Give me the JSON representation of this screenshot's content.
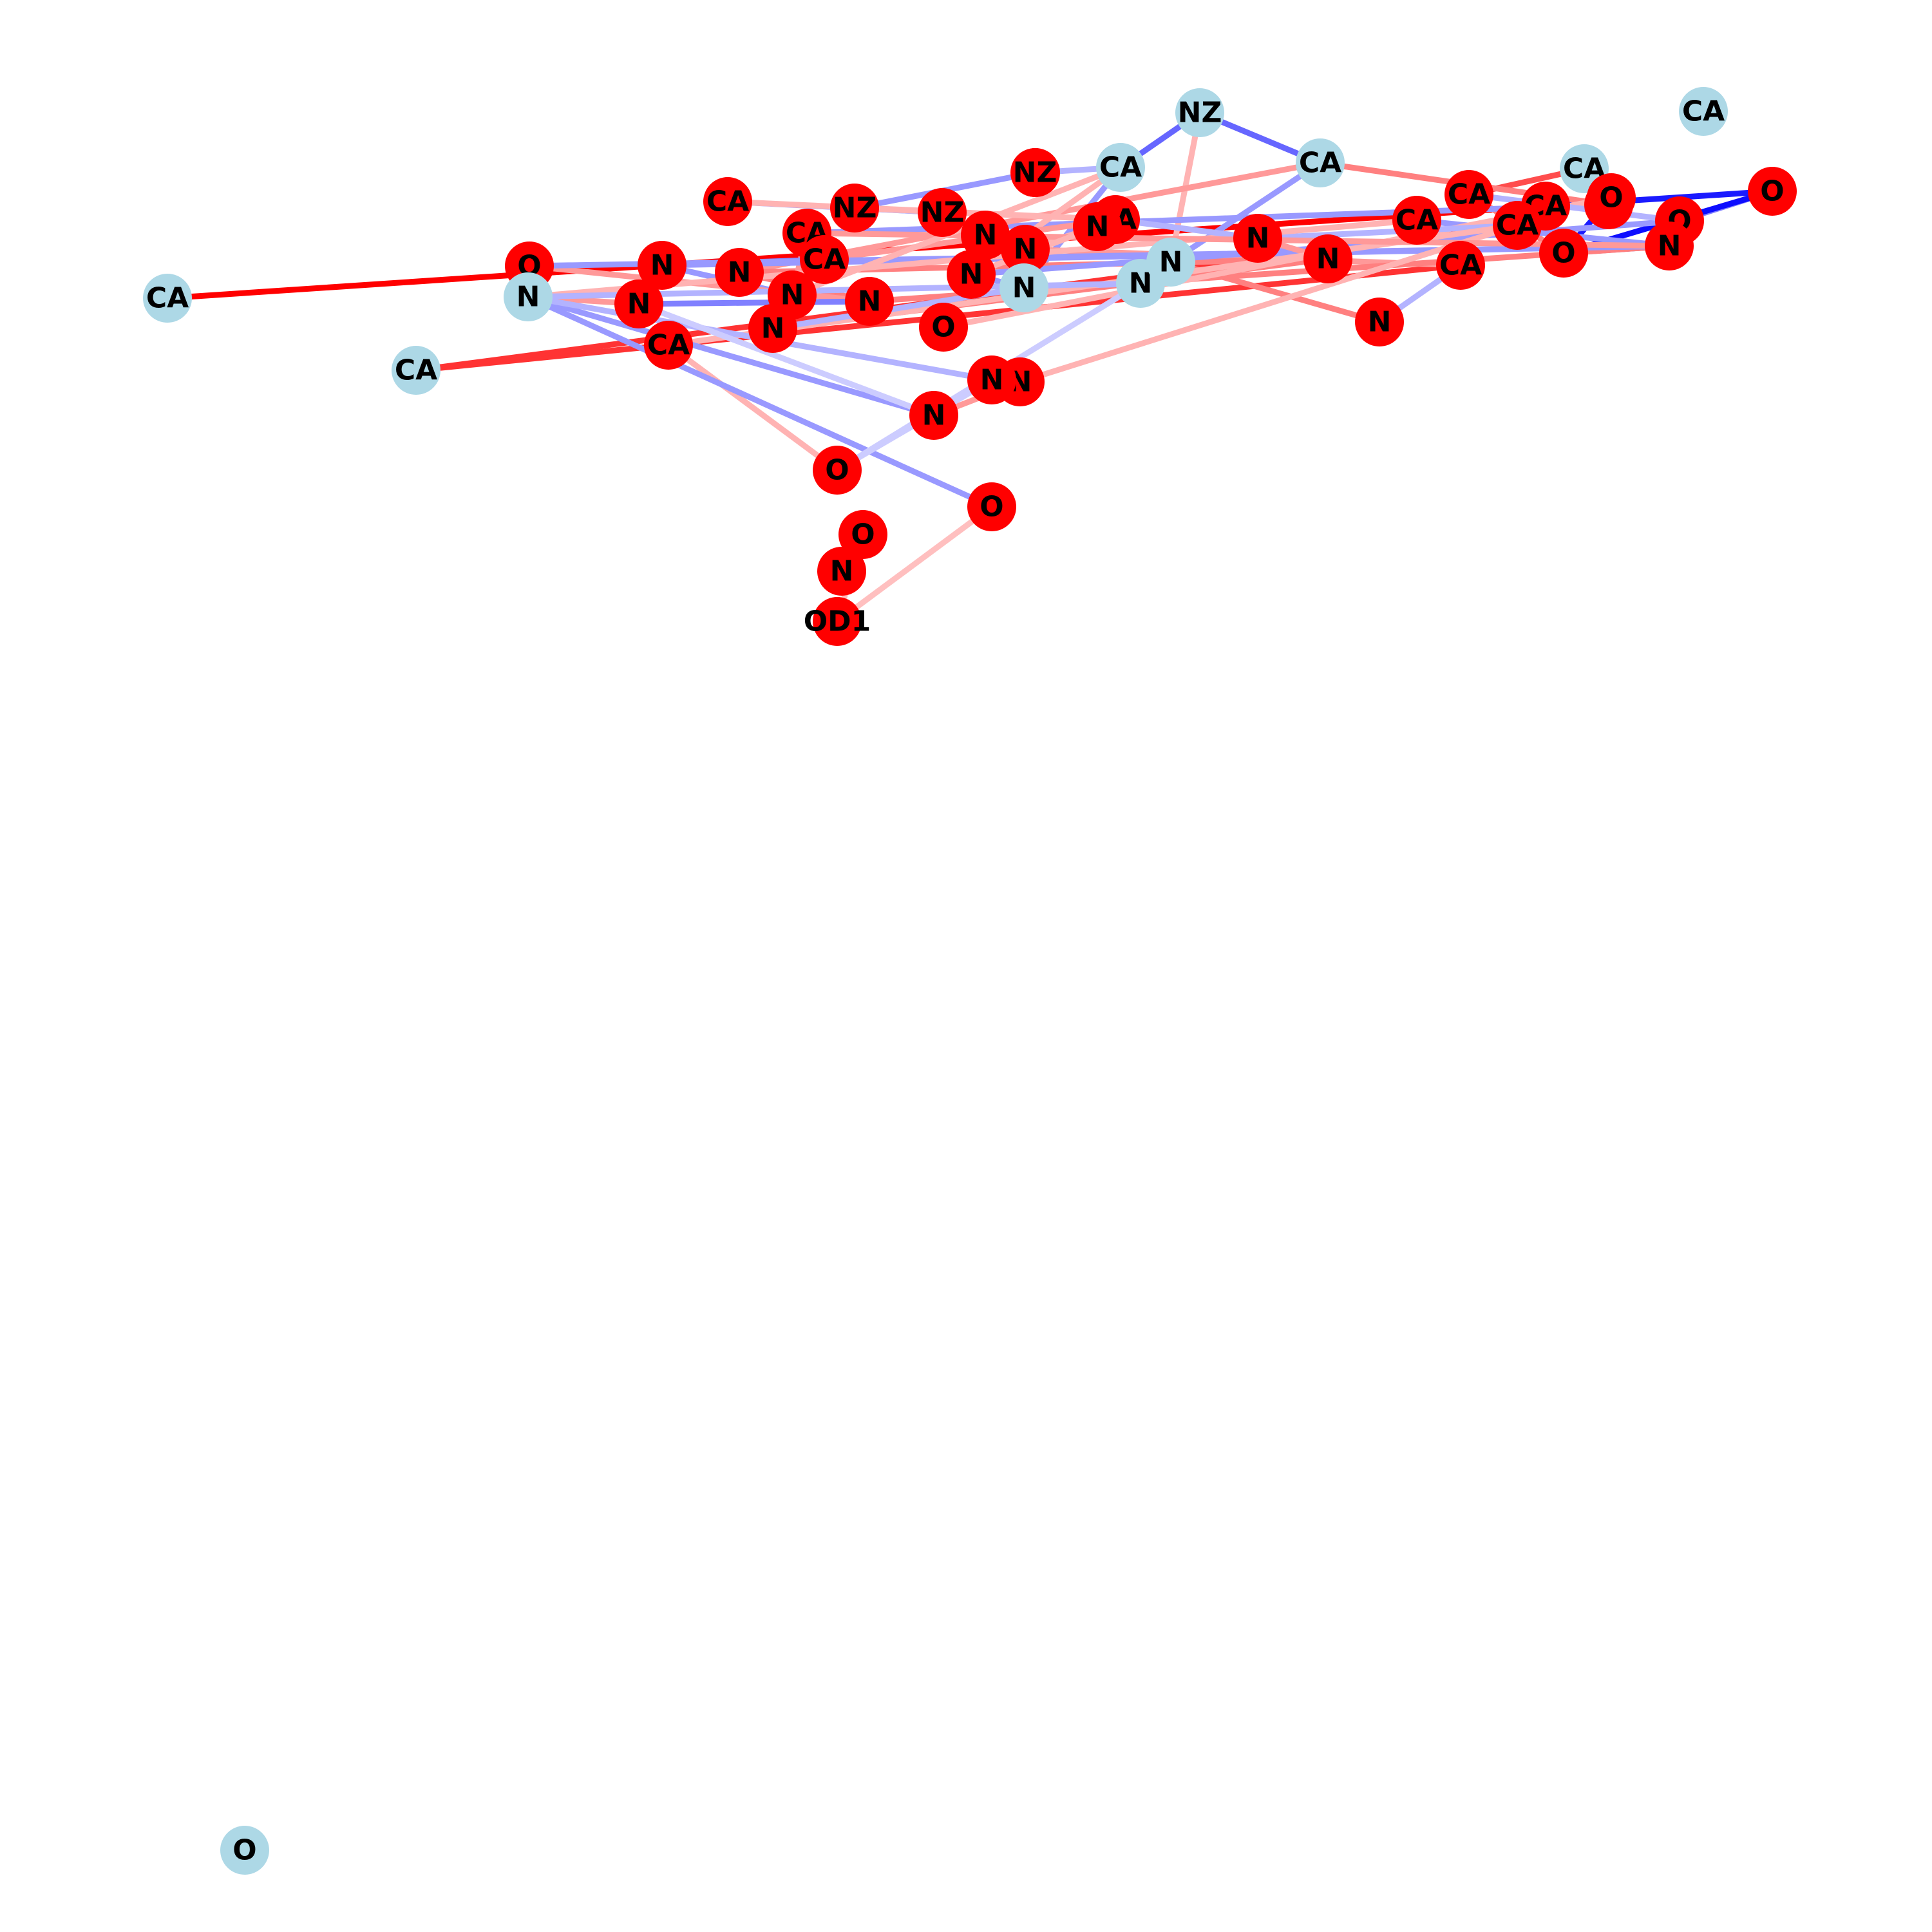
{
  "colors": {
    "background": "#ffffff",
    "node_red": "#ff0000",
    "node_light": "#add8e6",
    "label": "#000000",
    "edge_red": "#ff0000",
    "edge_blue": "#0000ff"
  },
  "graph": {
    "nodes": [
      {
        "id": "n0",
        "label": "NZ",
        "color": "light"
      },
      {
        "id": "n1",
        "label": "CA",
        "color": "light"
      },
      {
        "id": "n2",
        "label": "CA",
        "color": "light"
      },
      {
        "id": "n3",
        "label": "CA",
        "color": "red"
      },
      {
        "id": "n4",
        "label": "O",
        "color": "red"
      },
      {
        "id": "n5",
        "label": "NZ",
        "color": "red"
      },
      {
        "id": "n6",
        "label": "CA",
        "color": "light"
      },
      {
        "id": "n7",
        "label": "CA",
        "color": "red"
      },
      {
        "id": "n8",
        "label": "CA",
        "color": "red"
      },
      {
        "id": "n9",
        "label": "O",
        "color": "red"
      },
      {
        "id": "n10",
        "label": "CA",
        "color": "light"
      },
      {
        "id": "n11",
        "label": "NZ",
        "color": "red"
      },
      {
        "id": "n12",
        "label": "NZ",
        "color": "red"
      },
      {
        "id": "n13",
        "label": "NZ",
        "color": "red"
      },
      {
        "id": "n14",
        "label": "CA",
        "color": "red"
      },
      {
        "id": "n15",
        "label": "CA",
        "color": "red"
      },
      {
        "id": "n16",
        "label": "O",
        "color": "red"
      },
      {
        "id": "n17",
        "label": "N",
        "color": "red"
      },
      {
        "id": "n18",
        "label": "N",
        "color": "red"
      },
      {
        "id": "n19",
        "label": "N",
        "color": "red"
      },
      {
        "id": "n20",
        "label": "CA",
        "color": "red"
      },
      {
        "id": "n21",
        "label": "CA",
        "color": "red"
      },
      {
        "id": "n22",
        "label": "N",
        "color": "red"
      },
      {
        "id": "n23",
        "label": "CA",
        "color": "red"
      },
      {
        "id": "n24",
        "label": "N",
        "color": "red"
      },
      {
        "id": "n25",
        "label": "N",
        "color": "red"
      },
      {
        "id": "n26",
        "label": "O",
        "color": "red"
      },
      {
        "id": "n27",
        "label": "N",
        "color": "light"
      },
      {
        "id": "n28",
        "label": "N",
        "color": "light"
      },
      {
        "id": "n29",
        "label": "N",
        "color": "light"
      },
      {
        "id": "n30",
        "label": "N",
        "color": "red"
      },
      {
        "id": "n31",
        "label": "N",
        "color": "red"
      },
      {
        "id": "n32",
        "label": "N",
        "color": "red"
      },
      {
        "id": "n33",
        "label": "N",
        "color": "red"
      },
      {
        "id": "n34",
        "label": "O",
        "color": "red"
      },
      {
        "id": "n35",
        "label": "CA",
        "color": "red"
      },
      {
        "id": "n36",
        "label": "CA",
        "color": "red"
      },
      {
        "id": "n37",
        "label": "N",
        "color": "red"
      },
      {
        "id": "n38",
        "label": "O",
        "color": "red"
      },
      {
        "id": "n39",
        "label": "N",
        "color": "red"
      },
      {
        "id": "n40",
        "label": "N",
        "color": "red"
      },
      {
        "id": "n41",
        "label": "N",
        "color": "red"
      },
      {
        "id": "n42",
        "label": "N",
        "color": "red"
      },
      {
        "id": "n43",
        "label": "CA",
        "color": "light"
      },
      {
        "id": "n44",
        "label": "CA",
        "color": "light"
      },
      {
        "id": "n45",
        "label": "CA",
        "color": "red"
      },
      {
        "id": "n46",
        "label": "N",
        "color": "red"
      },
      {
        "id": "n47",
        "label": "N",
        "color": "light"
      },
      {
        "id": "n48",
        "label": "N",
        "color": "red"
      },
      {
        "id": "n49",
        "label": "O",
        "color": "red"
      },
      {
        "id": "n50",
        "label": "O",
        "color": "red"
      },
      {
        "id": "n51",
        "label": "O",
        "color": "red"
      },
      {
        "id": "n52",
        "label": "N",
        "color": "red"
      },
      {
        "id": "n53",
        "label": "OD1",
        "color": "red"
      },
      {
        "id": "n54",
        "label": "O",
        "color": "light"
      }
    ],
    "edges": [
      {
        "source": "n43",
        "target": "n8",
        "color": "red",
        "weight": 1.0
      },
      {
        "source": "n44",
        "target": "n23",
        "color": "red",
        "weight": 0.8
      },
      {
        "source": "n44",
        "target": "n21",
        "color": "red",
        "weight": 0.8
      },
      {
        "source": "n4",
        "target": "n8",
        "color": "blue",
        "weight": 0.9
      },
      {
        "source": "n8",
        "target": "n21",
        "color": "blue",
        "weight": 0.9
      },
      {
        "source": "n4",
        "target": "n9",
        "color": "blue",
        "weight": 0.5
      },
      {
        "source": "n0",
        "target": "n10",
        "color": "blue",
        "weight": 0.6
      },
      {
        "source": "n0",
        "target": "n6",
        "color": "blue",
        "weight": 0.6
      },
      {
        "source": "n0",
        "target": "n29",
        "color": "red",
        "weight": 0.3
      },
      {
        "source": "n2",
        "target": "n14",
        "color": "red",
        "weight": 0.7
      },
      {
        "source": "n2",
        "target": "n15",
        "color": "red",
        "weight": 0.6
      },
      {
        "source": "n15",
        "target": "n16",
        "color": "blue",
        "weight": 0.8
      },
      {
        "source": "n16",
        "target": "n26",
        "color": "blue",
        "weight": 0.9
      },
      {
        "source": "n26",
        "target": "n22",
        "color": "blue",
        "weight": 0.9
      },
      {
        "source": "n4",
        "target": "n26",
        "color": "blue",
        "weight": 0.95
      },
      {
        "source": "n14",
        "target": "n26",
        "color": "red",
        "weight": 0.5
      },
      {
        "source": "n15",
        "target": "n35",
        "color": "blue",
        "weight": 0.4
      },
      {
        "source": "n20",
        "target": "n22",
        "color": "blue",
        "weight": 0.4
      },
      {
        "source": "n6",
        "target": "n15",
        "color": "red",
        "weight": 0.5
      },
      {
        "source": "n6",
        "target": "n29",
        "color": "blue",
        "weight": 0.4
      },
      {
        "source": "n6",
        "target": "n31",
        "color": "red",
        "weight": 0.4
      },
      {
        "source": "n10",
        "target": "n27",
        "color": "blue",
        "weight": 0.4
      },
      {
        "source": "n10",
        "target": "n25",
        "color": "red",
        "weight": 0.3
      },
      {
        "source": "n11",
        "target": "n7",
        "color": "blue",
        "weight": 0.4
      },
      {
        "source": "n11",
        "target": "n12",
        "color": "blue",
        "weight": 0.3
      },
      {
        "source": "n12",
        "target": "n13",
        "color": "blue",
        "weight": 0.4
      },
      {
        "source": "n13",
        "target": "n5",
        "color": "blue",
        "weight": 0.4
      },
      {
        "source": "n5",
        "target": "n10",
        "color": "blue",
        "weight": 0.3
      },
      {
        "source": "n12",
        "target": "n3",
        "color": "red",
        "weight": 0.3
      },
      {
        "source": "n7",
        "target": "n3",
        "color": "red",
        "weight": 0.3
      },
      {
        "source": "n3",
        "target": "n36",
        "color": "red",
        "weight": 0.4
      },
      {
        "source": "n18",
        "target": "n23",
        "color": "red",
        "weight": 0.4
      },
      {
        "source": "n39",
        "target": "n30",
        "color": "red",
        "weight": 0.5
      },
      {
        "source": "n40",
        "target": "n29",
        "color": "red",
        "weight": 0.5
      },
      {
        "source": "n41",
        "target": "n42",
        "color": "red",
        "weight": 0.4
      },
      {
        "source": "n30",
        "target": "n31",
        "color": "red",
        "weight": 0.5
      },
      {
        "source": "n31",
        "target": "n33",
        "color": "red",
        "weight": 0.5
      },
      {
        "source": "n33",
        "target": "n22",
        "color": "red",
        "weight": 0.5
      },
      {
        "source": "n32",
        "target": "n37",
        "color": "blue",
        "weight": 0.4
      },
      {
        "source": "n32",
        "target": "n35",
        "color": "red",
        "weight": 0.4
      },
      {
        "source": "n36",
        "target": "n37",
        "color": "blue",
        "weight": 0.5
      },
      {
        "source": "n37",
        "target": "n22",
        "color": "blue",
        "weight": 0.4
      },
      {
        "source": "n33",
        "target": "n38",
        "color": "red",
        "weight": 0.4
      },
      {
        "source": "n38",
        "target": "n22",
        "color": "blue",
        "weight": 0.4
      },
      {
        "source": "n34",
        "target": "n16",
        "color": "red",
        "weight": 0.3
      },
      {
        "source": "n9",
        "target": "n25",
        "color": "blue",
        "weight": 0.4
      },
      {
        "source": "n25",
        "target": "n27",
        "color": "blue",
        "weight": 0.4
      },
      {
        "source": "n27",
        "target": "n28",
        "color": "blue",
        "weight": 0.3
      },
      {
        "source": "n28",
        "target": "n29",
        "color": "blue",
        "weight": 0.3
      },
      {
        "source": "n18",
        "target": "n19",
        "color": "red",
        "weight": 0.3
      },
      {
        "source": "n17",
        "target": "n18",
        "color": "red",
        "weight": 0.3
      },
      {
        "source": "n24",
        "target": "n30",
        "color": "red",
        "weight": 0.4
      },
      {
        "source": "n21",
        "target": "n24",
        "color": "blue",
        "weight": 0.3
      },
      {
        "source": "n23",
        "target": "n40",
        "color": "blue",
        "weight": 0.3
      },
      {
        "source": "n21",
        "target": "n41",
        "color": "red",
        "weight": 0.3
      },
      {
        "source": "n20",
        "target": "n47",
        "color": "red",
        "weight": 0.3
      },
      {
        "source": "n21",
        "target": "n45",
        "color": "red",
        "weight": 0.3
      },
      {
        "source": "n45",
        "target": "n49",
        "color": "red",
        "weight": 0.3
      },
      {
        "source": "n47",
        "target": "n46",
        "color": "red",
        "weight": 0.4
      },
      {
        "source": "n47",
        "target": "n42",
        "color": "blue",
        "weight": 0.4
      },
      {
        "source": "n47",
        "target": "n48",
        "color": "blue",
        "weight": 0.3
      },
      {
        "source": "n47",
        "target": "n50",
        "color": "blue",
        "weight": 0.4
      },
      {
        "source": "n47",
        "target": "n28",
        "color": "blue",
        "weight": 0.3
      },
      {
        "source": "n48",
        "target": "n49",
        "color": "blue",
        "weight": 0.2
      },
      {
        "source": "n49",
        "target": "n28",
        "color": "blue",
        "weight": 0.2
      },
      {
        "source": "n50",
        "target": "n53",
        "color": "red",
        "weight": 0.25
      },
      {
        "source": "n51",
        "target": "n53",
        "color": "red",
        "weight": 0.25
      },
      {
        "source": "n52",
        "target": "n51",
        "color": "red",
        "weight": 0.3
      },
      {
        "source": "n46",
        "target": "n42",
        "color": "blue",
        "weight": 0.2
      },
      {
        "source": "n33",
        "target": "n46",
        "color": "blue",
        "weight": 0.5
      },
      {
        "source": "n9",
        "target": "n14",
        "color": "blue",
        "weight": 0.3
      },
      {
        "source": "n3",
        "target": "n24",
        "color": "blue",
        "weight": 0.3
      },
      {
        "source": "n35",
        "target": "n22",
        "color": "red",
        "weight": 0.4
      },
      {
        "source": "n32",
        "target": "n10",
        "color": "red",
        "weight": 0.3
      },
      {
        "source": "n39",
        "target": "n27",
        "color": "blue",
        "weight": 0.3
      },
      {
        "source": "n19",
        "target": "n25",
        "color": "red",
        "weight": 0.3
      }
    ]
  }
}
